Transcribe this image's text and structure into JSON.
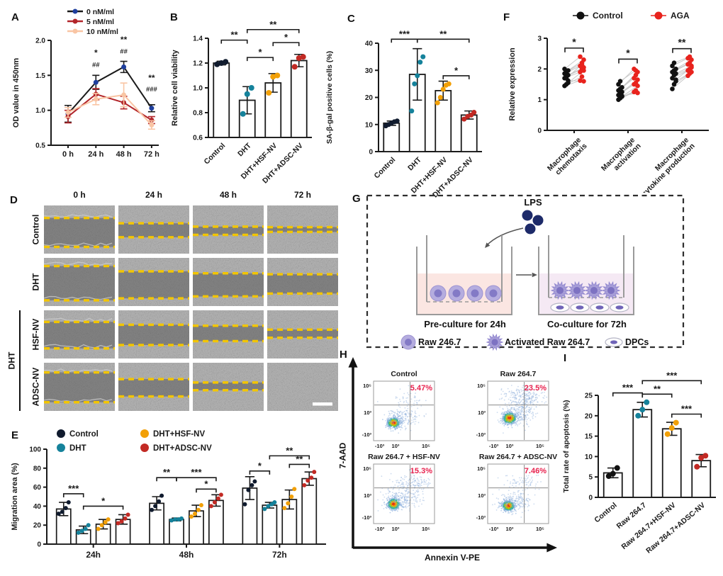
{
  "figure": {
    "panel_labels": {
      "A": "A",
      "B": "B",
      "C": "C",
      "D": "D",
      "E": "E",
      "F": "F",
      "G": "G",
      "H": "H",
      "I": "I"
    }
  },
  "chart_data": [
    {
      "id": "A",
      "type": "line",
      "ylabel": "OD value in 450nm",
      "ylim": [
        0.5,
        2.0
      ],
      "yticks": [
        0.5,
        1.0,
        1.5,
        2.0
      ],
      "ytick_labels": [
        "0.5",
        "1.0",
        "1.5",
        "2.0"
      ],
      "x_ticklabels": [
        "0 h",
        "24 h",
        "48 h",
        "72 h"
      ],
      "series": [
        {
          "name": "0 nM/ml",
          "marker_color": "#1f3f9e",
          "line_color": "#1a1a1a",
          "values": [
            0.95,
            1.4,
            1.62,
            1.03
          ],
          "errors": [
            0.12,
            0.1,
            0.08,
            0.05
          ]
        },
        {
          "name": "5 nM/ml",
          "marker_color": "#b2252a",
          "line_color": "#b2252a",
          "values": [
            0.91,
            1.23,
            1.11,
            0.86
          ],
          "errors": [
            0.09,
            0.08,
            0.09,
            0.05
          ]
        },
        {
          "name": "10 nM/ml",
          "marker_color": "#f9c5a4",
          "line_color": "#f9c5a4",
          "values": [
            0.97,
            1.16,
            1.22,
            0.79
          ],
          "errors": [
            0.07,
            0.08,
            0.17,
            0.06
          ]
        }
      ],
      "annotations": [
        {
          "i": 1,
          "lines": [
            "*",
            "##"
          ],
          "ys": [
            1.78,
            1.62
          ]
        },
        {
          "i": 2,
          "lines": [
            "**",
            "##"
          ],
          "ys": [
            1.97,
            1.81
          ]
        },
        {
          "i": 3,
          "lines": [
            "**",
            "###"
          ],
          "ys": [
            1.42,
            1.27
          ]
        }
      ]
    },
    {
      "id": "B",
      "type": "bar",
      "ylabel": "Relative cell viability",
      "ylim": [
        0.6,
        1.4
      ],
      "yticks": [
        0.6,
        0.8,
        1.0,
        1.2,
        1.4
      ],
      "ytick_labels": [
        "0.6",
        "0.8",
        "1.0",
        "1.2",
        "1.4"
      ],
      "categories": [
        "Control",
        "DHT",
        "DHT+HSF-NV",
        "DHT+ADSC-NV"
      ],
      "values": [
        1.2,
        0.9,
        1.04,
        1.22
      ],
      "errors": [
        0.015,
        0.11,
        0.075,
        0.05
      ],
      "points": [
        [
          1.19,
          1.2,
          1.21
        ],
        [
          0.79,
          0.95,
          1.0
        ],
        [
          0.96,
          1.09,
          1.1
        ],
        [
          1.17,
          1.24,
          1.25
        ]
      ],
      "dot_colors": [
        "#101b2e",
        "#15829b",
        "#f2a007",
        "#c22a24"
      ],
      "sig": [
        {
          "a": 0,
          "b": 1,
          "label": "**",
          "y": 1.385
        },
        {
          "a": 1,
          "b": 2,
          "label": "*",
          "y": 1.245
        },
        {
          "a": 1,
          "b": 3,
          "label": "**",
          "y": 1.47
        },
        {
          "a": 2,
          "b": 3,
          "label": "*",
          "y": 1.365
        }
      ]
    },
    {
      "id": "C",
      "type": "bar",
      "ylabel": "SA-β-gal positive cells (%)",
      "ylim": [
        0,
        40
      ],
      "yticks": [
        0,
        10,
        20,
        30,
        40
      ],
      "ytick_labels": [
        "0",
        "10",
        "20",
        "30",
        "40"
      ],
      "categories": [
        "Control",
        "DHT",
        "DHT+HSF-NV",
        "DHT+ADSC-NV"
      ],
      "values": [
        10.5,
        28.5,
        22.5,
        13.5
      ],
      "errors": [
        0.8,
        9.5,
        3.5,
        1.5
      ],
      "points": [
        [
          9.5,
          10,
          10.5,
          11,
          11.3
        ],
        [
          15,
          25,
          28,
          33,
          35
        ],
        [
          18,
          20,
          23,
          24.5,
          25
        ],
        [
          12,
          13,
          13.5,
          14.5
        ]
      ],
      "dot_colors": [
        "#101b2e",
        "#15829b",
        "#f2a007",
        "#c22a24"
      ],
      "sig": [
        {
          "a": 0,
          "b": 1,
          "label": "***",
          "y": 41.5
        },
        {
          "a": 1,
          "b": 3,
          "label": "**",
          "y": 41.5
        },
        {
          "a": 2,
          "b": 3,
          "label": "*",
          "y": 28
        }
      ]
    },
    {
      "id": "E",
      "type": "grouped-bar",
      "ylabel": "Migration area (%)",
      "ylim": [
        0,
        100
      ],
      "yticks": [
        0,
        20,
        40,
        60,
        80,
        100
      ],
      "ytick_labels": [
        "0",
        "20",
        "40",
        "60",
        "80",
        "100"
      ],
      "groups": [
        "24h",
        "48h",
        "72h"
      ],
      "series": [
        {
          "name": "Control",
          "color": "#101b2e",
          "values": [
            37,
            43,
            59
          ],
          "errors": [
            7,
            7,
            12
          ],
          "points": [
            [
              32,
              34,
              38,
              44
            ],
            [
              36,
              40,
              45,
              51
            ],
            [
              42,
              57,
              62,
              66
            ]
          ]
        },
        {
          "name": "DHT",
          "color": "#15829b",
          "values": [
            15,
            26,
            41
          ],
          "errors": [
            4,
            1.5,
            3
          ],
          "points": [
            [
              12,
              14,
              16,
              20
            ],
            [
              25,
              26,
              26,
              27
            ],
            [
              37,
              40,
              42,
              44
            ]
          ]
        },
        {
          "name": "DHT+HSF-NV",
          "color": "#f2a007",
          "values": [
            21,
            35,
            47
          ],
          "errors": [
            5,
            6,
            10
          ],
          "points": [
            [
              16,
              20,
              23,
              26
            ],
            [
              29,
              32,
              36,
              41
            ],
            [
              38,
              43,
              50,
              58
            ]
          ]
        },
        {
          "name": "DHT+ADSC-NV",
          "color": "#c22a24",
          "values": [
            26,
            46,
            69
          ],
          "errors": [
            5,
            6,
            7
          ],
          "points": [
            [
              22,
              24,
              27,
              31
            ],
            [
              40,
              44,
              48,
              52
            ],
            [
              62,
              67,
              70,
              76
            ]
          ]
        }
      ],
      "sig": [
        {
          "a": 0,
          "b": 1,
          "label": "***",
          "y": 53
        },
        {
          "a": 1,
          "b": 3,
          "label": "*",
          "y": 40
        },
        {
          "a": 4,
          "b": 5,
          "label": "**",
          "y": 70
        },
        {
          "a": 5,
          "b": 7,
          "label": "***",
          "y": 70
        },
        {
          "a": 6,
          "b": 7,
          "label": "*",
          "y": 58
        },
        {
          "a": 8,
          "b": 9,
          "label": "*",
          "y": 77
        },
        {
          "a": 9,
          "b": 11,
          "label": "**",
          "y": 93
        },
        {
          "a": 10,
          "b": 11,
          "label": "**",
          "y": 84
        }
      ]
    },
    {
      "id": "F",
      "type": "paired-scatter",
      "ylabel": "Relative expression",
      "ylim": [
        0,
        3
      ],
      "yticks": [
        0,
        1,
        2,
        3
      ],
      "ytick_labels": [
        "0",
        "1",
        "2",
        "3"
      ],
      "legend": [
        {
          "name": "Control",
          "color": "#111111"
        },
        {
          "name": "AGA",
          "color": "#e8231d"
        }
      ],
      "categories": [
        [
          "Macrophage",
          "chemotaxis"
        ],
        [
          "Macrophage",
          "activation"
        ],
        [
          "Macrophage",
          "cytokine production"
        ]
      ],
      "pairs": [
        [
          [
            1.45,
            1.62
          ],
          [
            1.5,
            1.75
          ],
          [
            1.62,
            1.6
          ],
          [
            1.7,
            1.9
          ],
          [
            1.75,
            2.0
          ],
          [
            1.8,
            2.05
          ],
          [
            1.85,
            2.1
          ],
          [
            1.9,
            2.2
          ],
          [
            1.95,
            2.3
          ],
          [
            2.0,
            2.4
          ],
          [
            1.7,
            2.15
          ],
          [
            1.55,
            1.95
          ]
        ],
        [
          [
            1.0,
            1.25
          ],
          [
            1.05,
            1.3
          ],
          [
            1.1,
            1.45
          ],
          [
            1.15,
            1.5
          ],
          [
            1.2,
            1.55
          ],
          [
            1.25,
            1.65
          ],
          [
            1.3,
            1.7
          ],
          [
            1.35,
            1.8
          ],
          [
            1.4,
            1.9
          ],
          [
            1.5,
            2.0
          ],
          [
            1.6,
            1.95
          ],
          [
            1.12,
            1.22
          ]
        ],
        [
          [
            1.35,
            1.78
          ],
          [
            1.5,
            1.85
          ],
          [
            1.6,
            1.9
          ],
          [
            1.7,
            1.95
          ],
          [
            1.8,
            2.0
          ],
          [
            1.85,
            2.1
          ],
          [
            1.9,
            2.15
          ],
          [
            1.95,
            2.2
          ],
          [
            2.0,
            2.3
          ],
          [
            2.1,
            2.35
          ],
          [
            2.2,
            2.4
          ],
          [
            1.65,
            2.05
          ]
        ]
      ],
      "sig": [
        {
          "label": "*",
          "y": 2.68
        },
        {
          "label": "*",
          "y": 2.32
        },
        {
          "label": "**",
          "y": 2.66
        }
      ]
    },
    {
      "id": "H",
      "type": "scatter-flow",
      "xlabel": "Annexin V-PE",
      "ylabel": "7-AAD",
      "pct_color": "#e8224e",
      "yticks": [
        "10⁵",
        "10³",
        "-10³"
      ],
      "xticks": [
        "-10³",
        "10³",
        "10⁵"
      ],
      "plots": [
        {
          "title": "Control",
          "pct": "5.47%",
          "clusters": [
            {
              "k": "core",
              "cx": 0.33,
              "cy": 0.7,
              "sx": 0.05,
              "sy": 0.042,
              "n": 520
            },
            {
              "k": "sp",
              "cx": 0.46,
              "cy": 0.63,
              "sx": 0.13,
              "sy": 0.085,
              "n": 190
            },
            {
              "k": "sp",
              "cx": 0.56,
              "cy": 0.31,
              "sx": 0.15,
              "sy": 0.08,
              "n": 50
            }
          ]
        },
        {
          "title": "Raw 264.7",
          "pct": "23.5%",
          "clusters": [
            {
              "k": "core",
              "cx": 0.36,
              "cy": 0.62,
              "sx": 0.055,
              "sy": 0.05,
              "n": 500
            },
            {
              "k": "sp",
              "cx": 0.49,
              "cy": 0.55,
              "sx": 0.14,
              "sy": 0.1,
              "n": 210
            },
            {
              "k": "sp",
              "cx": 0.61,
              "cy": 0.28,
              "sx": 0.16,
              "sy": 0.09,
              "n": 260
            }
          ]
        },
        {
          "title": "Raw 264.7 + HSF-NV",
          "pct": "15.3%",
          "clusters": [
            {
              "k": "core",
              "cx": 0.33,
              "cy": 0.67,
              "sx": 0.05,
              "sy": 0.046,
              "n": 510
            },
            {
              "k": "sp",
              "cx": 0.48,
              "cy": 0.6,
              "sx": 0.15,
              "sy": 0.09,
              "n": 220
            },
            {
              "k": "sp",
              "cx": 0.58,
              "cy": 0.33,
              "sx": 0.16,
              "sy": 0.08,
              "n": 150
            }
          ]
        },
        {
          "title": "Raw 264.7 + ADSC-NV",
          "pct": "7.46%",
          "clusters": [
            {
              "k": "core",
              "cx": 0.34,
              "cy": 0.7,
              "sx": 0.05,
              "sy": 0.042,
              "n": 520
            },
            {
              "k": "sp",
              "cx": 0.46,
              "cy": 0.62,
              "sx": 0.13,
              "sy": 0.08,
              "n": 200
            },
            {
              "k": "sp",
              "cx": 0.57,
              "cy": 0.31,
              "sx": 0.14,
              "sy": 0.07,
              "n": 70
            }
          ]
        }
      ]
    },
    {
      "id": "I",
      "type": "bar",
      "ylabel": "Total rate of apoptosis (%)",
      "ylim": [
        0,
        25
      ],
      "yticks": [
        0,
        5,
        10,
        15,
        20,
        25
      ],
      "ytick_labels": [
        "0",
        "5",
        "10",
        "15",
        "20",
        "25"
      ],
      "categories": [
        "Control",
        "Raw 264.7",
        "Raw 264.7+HSF-NV",
        "Raw 264.7+ADSC-NV"
      ],
      "values": [
        6,
        21.5,
        16.8,
        9
      ],
      "errors": [
        1.2,
        1.8,
        1.6,
        1.5
      ],
      "points": [
        [
          5.2,
          5.8,
          7.2
        ],
        [
          20,
          21.5,
          23.3
        ],
        [
          15.5,
          17,
          18.3
        ],
        [
          7.5,
          9.7,
          10.2
        ]
      ],
      "dot_colors": [
        "#111111",
        "#15829b",
        "#f2a007",
        "#c22a24"
      ],
      "sig": [
        {
          "a": 0,
          "b": 1,
          "label": "***",
          "y": 25.6
        },
        {
          "a": 1,
          "b": 2,
          "label": "**",
          "y": 25.3
        },
        {
          "a": 1,
          "b": 3,
          "label": "***",
          "y": 28.6
        },
        {
          "a": 2,
          "b": 3,
          "label": "***",
          "y": 20.4
        }
      ]
    }
  ],
  "panels": {
    "D": {
      "col_headers": [
        "0 h",
        "24 h",
        "48 h",
        "72 h"
      ],
      "row_labels": [
        "Control",
        "DHT",
        "HSF-NV",
        "ADSC-NV"
      ],
      "group_label": "DHT",
      "line_color": "#f2c500",
      "gap_lines": [
        [
          [
            0.26,
            0.86
          ],
          [
            0.37,
            0.66
          ],
          [
            0.44,
            0.61
          ],
          [
            0.45,
            0.55
          ]
        ],
        [
          [
            0.17,
            0.88
          ],
          [
            0.28,
            0.84
          ],
          [
            0.32,
            0.8
          ],
          [
            0.34,
            0.74
          ]
        ],
        [
          [
            0.24,
            0.79
          ],
          [
            0.3,
            0.72
          ],
          [
            0.32,
            0.64
          ],
          [
            0.4,
            0.57
          ]
        ],
        [
          [
            0.2,
            0.82
          ],
          [
            0.34,
            0.7
          ],
          [
            0.41,
            0.57
          ],
          null
        ]
      ]
    },
    "G": {
      "lps": "LPS",
      "pre_caption": "Pre-culture for 24h",
      "co_caption": "Co-culture for 72h",
      "legend": [
        {
          "icon": "round-cell",
          "label": "Raw 246.7"
        },
        {
          "icon": "spiky-cell",
          "label": "Activated Raw 264.7"
        },
        {
          "icon": "oval-cell",
          "label": "DPCs"
        }
      ]
    }
  }
}
